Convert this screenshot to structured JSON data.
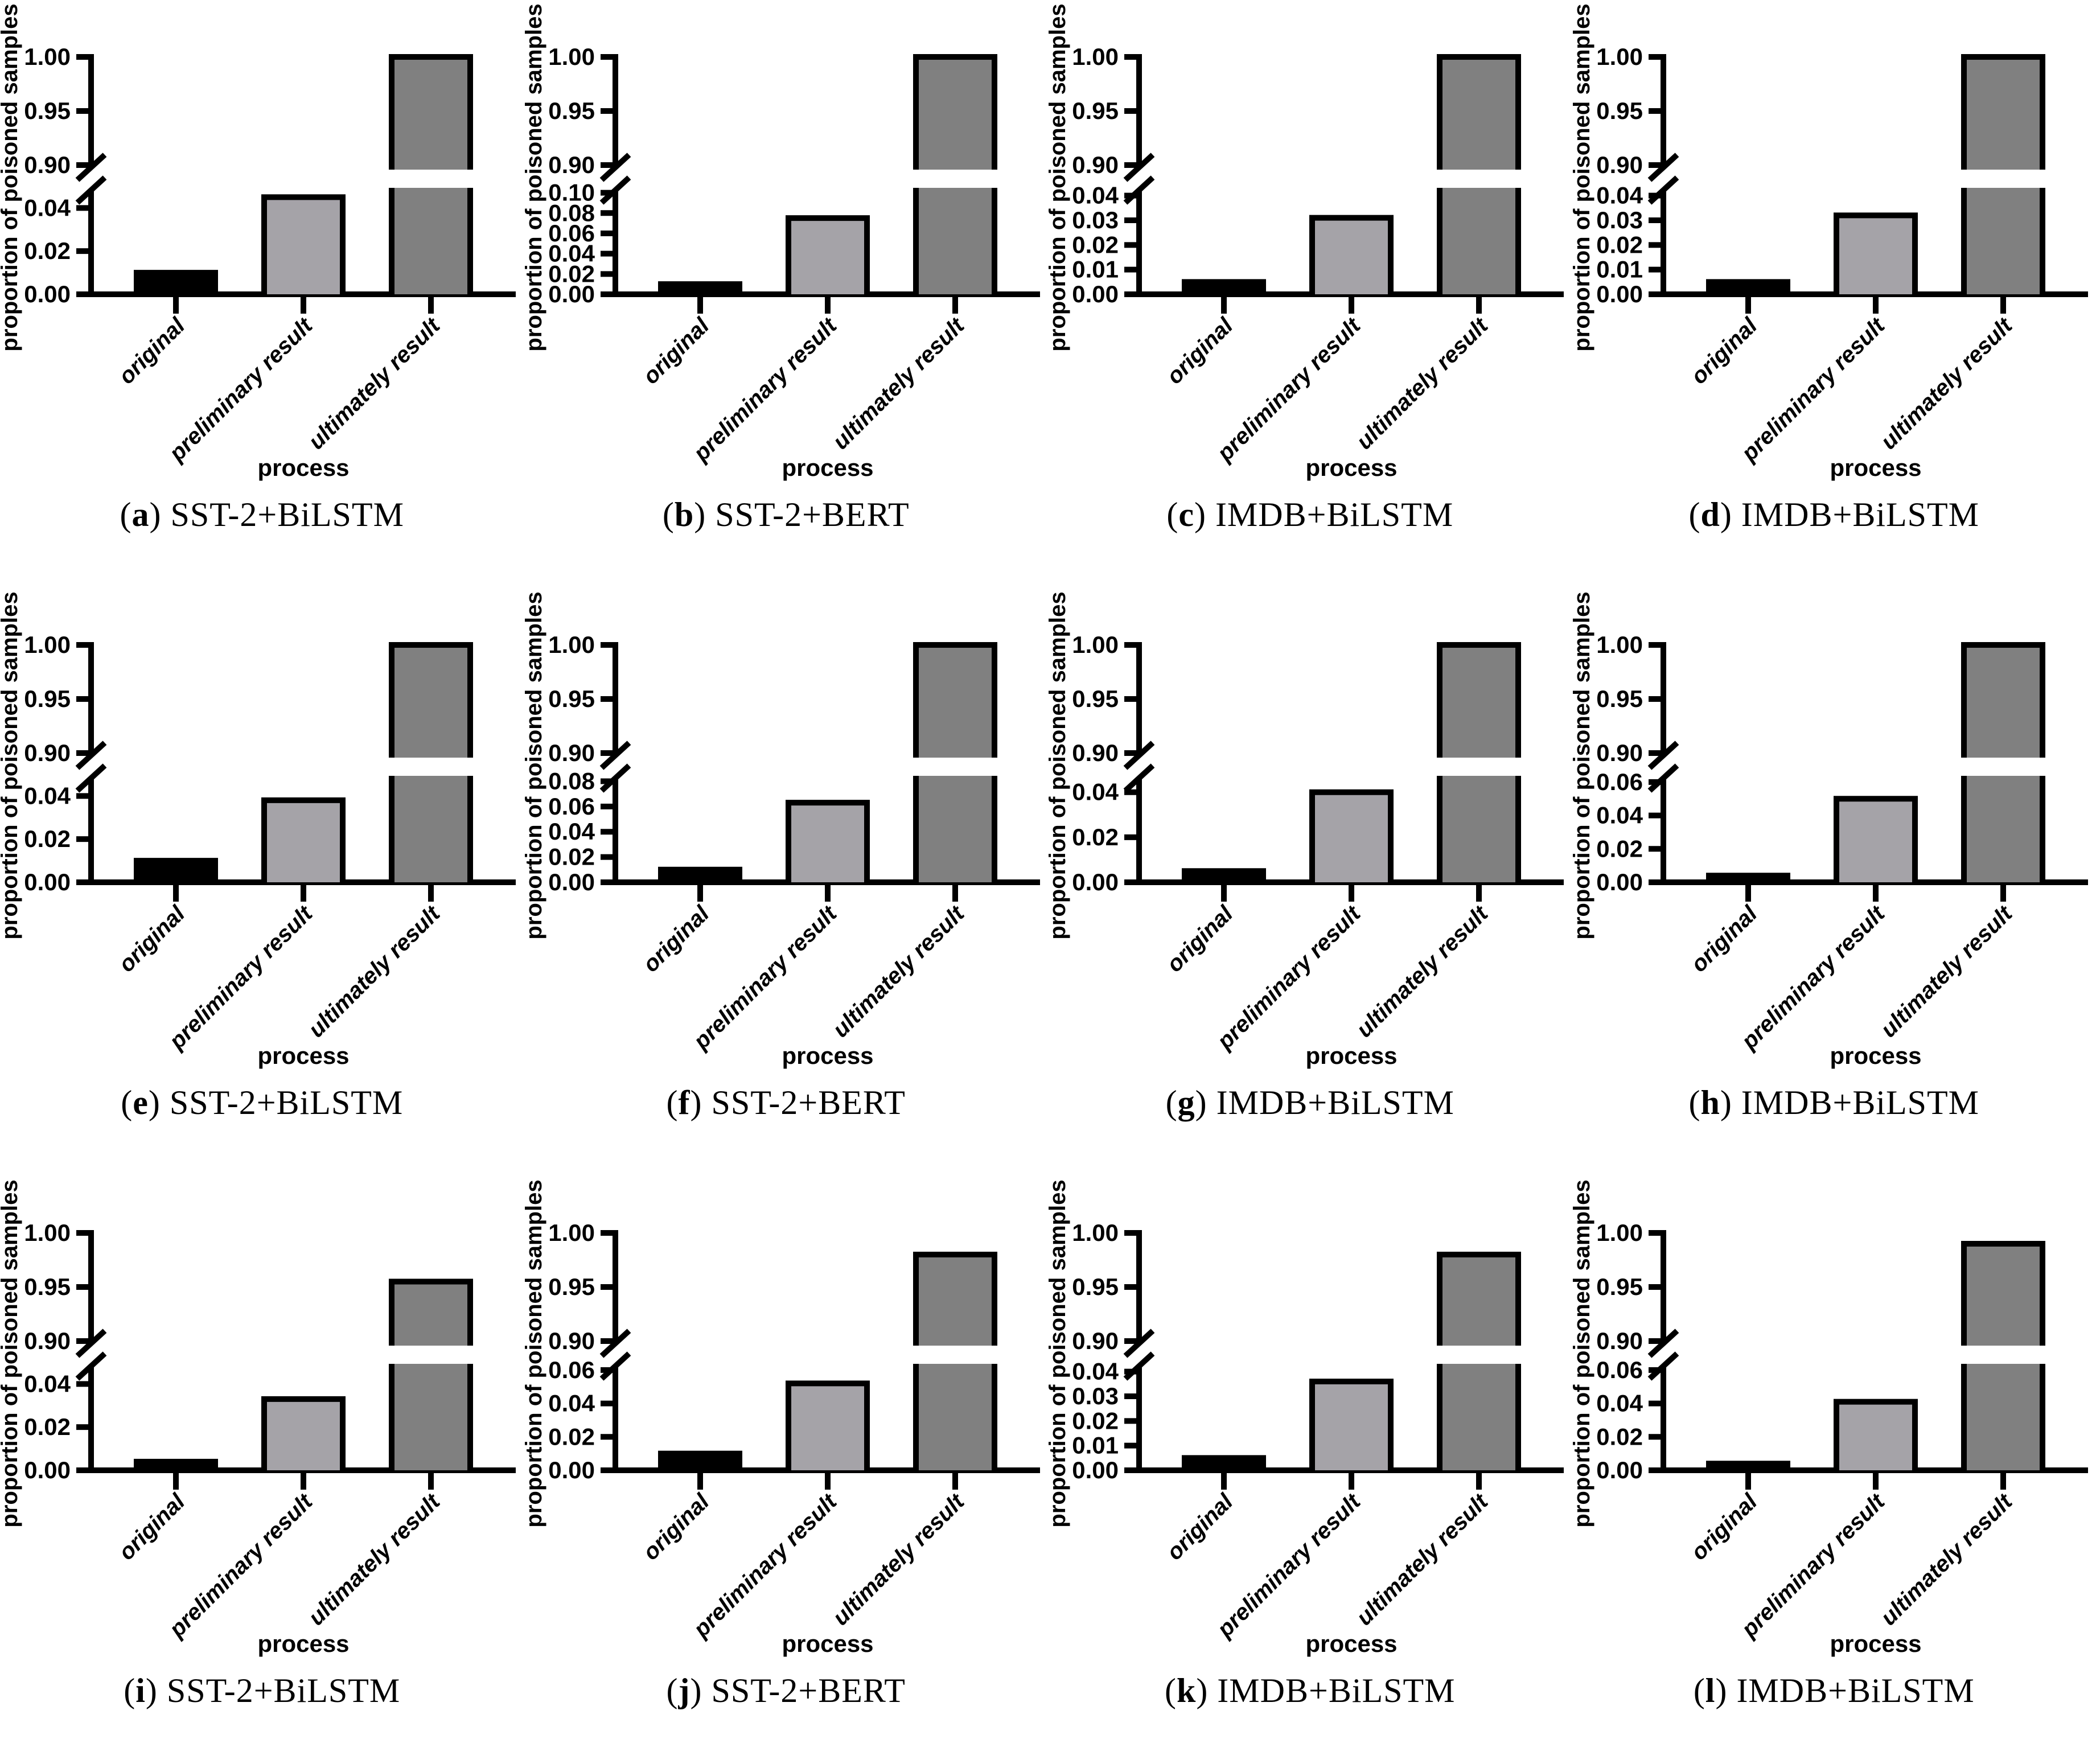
{
  "figure": {
    "background": "#ffffff",
    "axis_color": "#000000",
    "ylabel": "proportion of poisoned samples",
    "xlabel": "process",
    "categories": [
      "original",
      "preliminary result",
      "ultimately result"
    ],
    "bar_colors": [
      "#000000",
      "#a5a3a8",
      "#808080"
    ],
    "upper_axis_range": [
      0.9,
      1.0
    ],
    "upper_ticks": [
      0.9,
      0.95,
      1.0
    ],
    "broken_axis": true,
    "grid": "off",
    "legend": "none"
  },
  "chart_data": [
    {
      "type": "bar",
      "label": "(a)",
      "letter": "a",
      "title": "SST-2+BiLSTM",
      "categories": [
        "original",
        "preliminary result",
        "ultimately result"
      ],
      "values": [
        0.01,
        0.045,
        1.0
      ],
      "ylabel": "proportion of poisoned samples",
      "xlabel": "process",
      "lower_ticks": [
        0.0,
        0.02,
        0.04
      ],
      "lower_axis_top": 0.048,
      "upper_ticks": [
        0.9,
        0.95,
        1.0
      ]
    },
    {
      "type": "bar",
      "label": "(b)",
      "letter": "b",
      "title": "SST-2+BERT",
      "categories": [
        "original",
        "preliminary result",
        "ultimately result"
      ],
      "values": [
        0.01,
        0.075,
        1.0
      ],
      "ylabel": "proportion of poisoned samples",
      "xlabel": "process",
      "lower_ticks": [
        0.0,
        0.02,
        0.04,
        0.06,
        0.08,
        0.1
      ],
      "lower_axis_top": 0.102,
      "upper_ticks": [
        0.9,
        0.95,
        1.0
      ]
    },
    {
      "type": "bar",
      "label": "(c)",
      "letter": "c",
      "title": "IMDB+BiLSTM",
      "categories": [
        "original",
        "preliminary result",
        "ultimately result"
      ],
      "values": [
        0.005,
        0.031,
        1.0
      ],
      "ylabel": "proportion of poisoned samples",
      "xlabel": "process",
      "lower_ticks": [
        0.0,
        0.01,
        0.02,
        0.03,
        0.04
      ],
      "lower_axis_top": 0.042,
      "upper_ticks": [
        0.9,
        0.95,
        1.0
      ]
    },
    {
      "type": "bar",
      "label": "(d)",
      "letter": "d",
      "title": "IMDB+BiLSTM",
      "categories": [
        "original",
        "preliminary result",
        "ultimately result"
      ],
      "values": [
        0.005,
        0.032,
        1.0
      ],
      "ylabel": "proportion of poisoned samples",
      "xlabel": "process",
      "lower_ticks": [
        0.0,
        0.01,
        0.02,
        0.03,
        0.04
      ],
      "lower_axis_top": 0.042,
      "upper_ticks": [
        0.9,
        0.95,
        1.0
      ]
    },
    {
      "type": "bar",
      "label": "(e)",
      "letter": "e",
      "title": "SST-2+BiLSTM",
      "categories": [
        "original",
        "preliminary result",
        "ultimately result"
      ],
      "values": [
        0.01,
        0.038,
        1.0
      ],
      "ylabel": "proportion of poisoned samples",
      "xlabel": "process",
      "lower_ticks": [
        0.0,
        0.02,
        0.04
      ],
      "lower_axis_top": 0.048,
      "upper_ticks": [
        0.9,
        0.95,
        1.0
      ]
    },
    {
      "type": "bar",
      "label": "(f)",
      "letter": "f",
      "title": "SST-2+BERT",
      "categories": [
        "original",
        "preliminary result",
        "ultimately result"
      ],
      "values": [
        0.01,
        0.063,
        1.0
      ],
      "ylabel": "proportion of poisoned samples",
      "xlabel": "process",
      "lower_ticks": [
        0.0,
        0.02,
        0.04,
        0.06,
        0.08
      ],
      "lower_axis_top": 0.082,
      "upper_ticks": [
        0.9,
        0.95,
        1.0
      ]
    },
    {
      "type": "bar",
      "label": "(g)",
      "letter": "g",
      "title": "IMDB+BiLSTM",
      "categories": [
        "original",
        "preliminary result",
        "ultimately result"
      ],
      "values": [
        0.005,
        0.04,
        1.0
      ],
      "ylabel": "proportion of poisoned samples",
      "xlabel": "process",
      "lower_ticks": [
        0.0,
        0.02,
        0.04
      ],
      "lower_axis_top": 0.046,
      "upper_ticks": [
        0.9,
        0.95,
        1.0
      ]
    },
    {
      "type": "bar",
      "label": "(h)",
      "letter": "h",
      "title": "IMDB+BiLSTM",
      "categories": [
        "original",
        "preliminary result",
        "ultimately result"
      ],
      "values": [
        0.004,
        0.05,
        1.0
      ],
      "ylabel": "proportion of poisoned samples",
      "xlabel": "process",
      "lower_ticks": [
        0.0,
        0.02,
        0.04,
        0.06
      ],
      "lower_axis_top": 0.062,
      "upper_ticks": [
        0.9,
        0.95,
        1.0
      ]
    },
    {
      "type": "bar",
      "label": "(i)",
      "letter": "i",
      "title": "SST-2+BiLSTM",
      "categories": [
        "original",
        "preliminary result",
        "ultimately result"
      ],
      "values": [
        0.004,
        0.033,
        0.955
      ],
      "ylabel": "proportion of poisoned samples",
      "xlabel": "process",
      "lower_ticks": [
        0.0,
        0.02,
        0.04
      ],
      "lower_axis_top": 0.048,
      "upper_ticks": [
        0.9,
        0.95,
        1.0
      ]
    },
    {
      "type": "bar",
      "label": "(j)",
      "letter": "j",
      "title": "SST-2+BERT",
      "categories": [
        "original",
        "preliminary result",
        "ultimately result"
      ],
      "values": [
        0.01,
        0.052,
        0.98
      ],
      "ylabel": "proportion of poisoned samples",
      "xlabel": "process",
      "lower_ticks": [
        0.0,
        0.02,
        0.04,
        0.06
      ],
      "lower_axis_top": 0.062,
      "upper_ticks": [
        0.9,
        0.95,
        1.0
      ]
    },
    {
      "type": "bar",
      "label": "(k)",
      "letter": "k",
      "title": "IMDB+BiLSTM",
      "categories": [
        "original",
        "preliminary result",
        "ultimately result"
      ],
      "values": [
        0.005,
        0.036,
        0.98
      ],
      "ylabel": "proportion of poisoned samples",
      "xlabel": "process",
      "lower_ticks": [
        0.0,
        0.01,
        0.02,
        0.03,
        0.04
      ],
      "lower_axis_top": 0.042,
      "upper_ticks": [
        0.9,
        0.95,
        1.0
      ]
    },
    {
      "type": "bar",
      "label": "(l)",
      "letter": "l",
      "title": "IMDB+BiLSTM",
      "categories": [
        "original",
        "preliminary result",
        "ultimately result"
      ],
      "values": [
        0.004,
        0.041,
        0.99
      ],
      "ylabel": "proportion of poisoned samples",
      "xlabel": "process",
      "lower_ticks": [
        0.0,
        0.02,
        0.04,
        0.06
      ],
      "lower_axis_top": 0.062,
      "upper_ticks": [
        0.9,
        0.95,
        1.0
      ]
    }
  ]
}
